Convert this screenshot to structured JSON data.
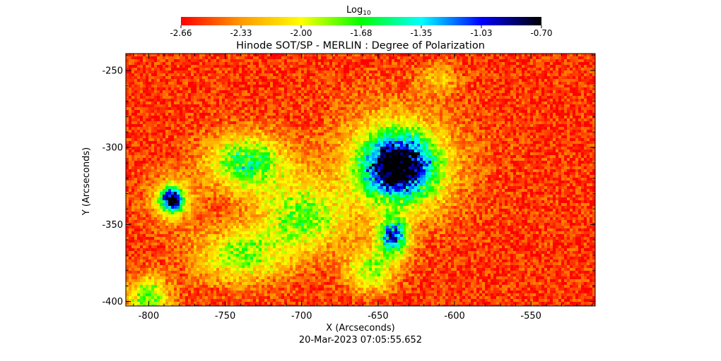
{
  "chart_data": {
    "type": "heatmap",
    "title": "Hinode SOT/SP - MERLIN : Degree of Polarization",
    "xlabel": "X (Arcseconds)",
    "ylabel": "Y (Arcseconds)",
    "timestamp": "20-Mar-2023 07:05:55.652",
    "colorbar": {
      "label_main": "Log",
      "label_sub": "10",
      "min": -2.66,
      "max": -0.7,
      "ticks": [
        "-2.66",
        "-2.33",
        "-2.00",
        "-1.68",
        "-1.35",
        "-1.03",
        "-0.70"
      ],
      "colors": [
        "#ff0000",
        "#ff9900",
        "#ffff00",
        "#00ff00",
        "#00ffff",
        "#0000ff",
        "#000000"
      ]
    },
    "xlim": [
      -815,
      -508
    ],
    "ylim": [
      -403,
      -239
    ],
    "xticks": [
      -800,
      -750,
      -700,
      -650,
      -600,
      -550
    ],
    "yticks": [
      -250,
      -300,
      -350,
      -400
    ],
    "background_level": -2.55,
    "features": [
      {
        "x": -637,
        "y": -312,
        "sx": 22,
        "sy": 20,
        "peak": 1.75
      },
      {
        "x": -637,
        "y": -312,
        "sx": 42,
        "sy": 38,
        "peak": 0.55
      },
      {
        "x": -785,
        "y": -334,
        "sx": 7,
        "sy": 8,
        "peak": 1.55
      },
      {
        "x": -785,
        "y": -334,
        "sx": 16,
        "sy": 16,
        "peak": 0.45
      },
      {
        "x": -736,
        "y": -310,
        "sx": 26,
        "sy": 18,
        "peak": 0.95
      },
      {
        "x": -700,
        "y": -345,
        "sx": 28,
        "sy": 22,
        "peak": 0.75
      },
      {
        "x": -740,
        "y": -370,
        "sx": 30,
        "sy": 18,
        "peak": 0.7
      },
      {
        "x": -640,
        "y": -358,
        "sx": 10,
        "sy": 12,
        "peak": 1.3
      },
      {
        "x": -655,
        "y": -380,
        "sx": 16,
        "sy": 14,
        "peak": 0.7
      },
      {
        "x": -800,
        "y": -398,
        "sx": 14,
        "sy": 14,
        "peak": 0.8
      },
      {
        "x": -610,
        "y": -255,
        "sx": 12,
        "sy": 10,
        "peak": 0.35
      }
    ]
  }
}
